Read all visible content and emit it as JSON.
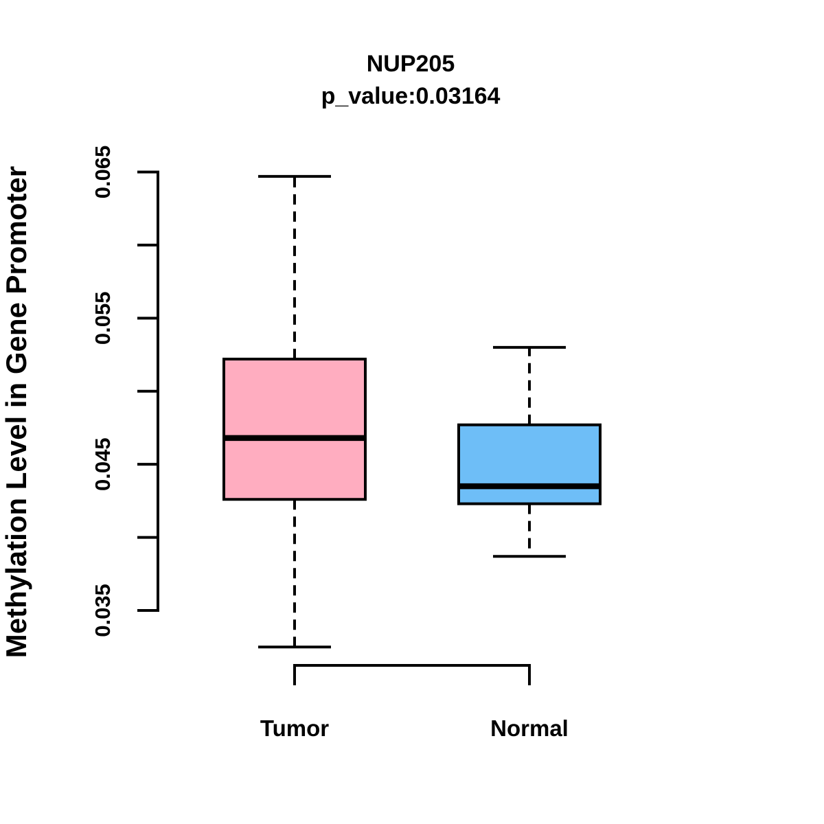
{
  "chart_data": {
    "type": "boxplot",
    "title": "NUP205",
    "subtitle": "p_value:0.03164",
    "ylabel": "Methylation Level in Gene Promoter",
    "xlabel": "",
    "groups": [
      {
        "label": "Tumor",
        "fill_color": "#FFADC0",
        "whisker_low": 0.0325,
        "q1": 0.0426,
        "median": 0.0468,
        "q3": 0.0522,
        "whisker_high": 0.0647,
        "outliers": []
      },
      {
        "label": "Normal",
        "fill_color": "#6EBEF7",
        "whisker_low": 0.0387,
        "q1": 0.0423,
        "median": 0.0435,
        "q3": 0.0477,
        "whisker_high": 0.053,
        "outliers": []
      }
    ],
    "y_axis": {
      "min": 0.035,
      "max": 0.065,
      "tick_step": 0.005,
      "labeled_ticks": [
        0.035,
        0.045,
        0.055,
        0.065
      ],
      "tick_decimals": 3
    },
    "x_axis": {
      "bracket_between_groups": true
    },
    "styles": {
      "line_color": "#000000",
      "background": "#FFFFFF",
      "whisker_style": "dashed"
    },
    "legend": null,
    "grid": false
  }
}
